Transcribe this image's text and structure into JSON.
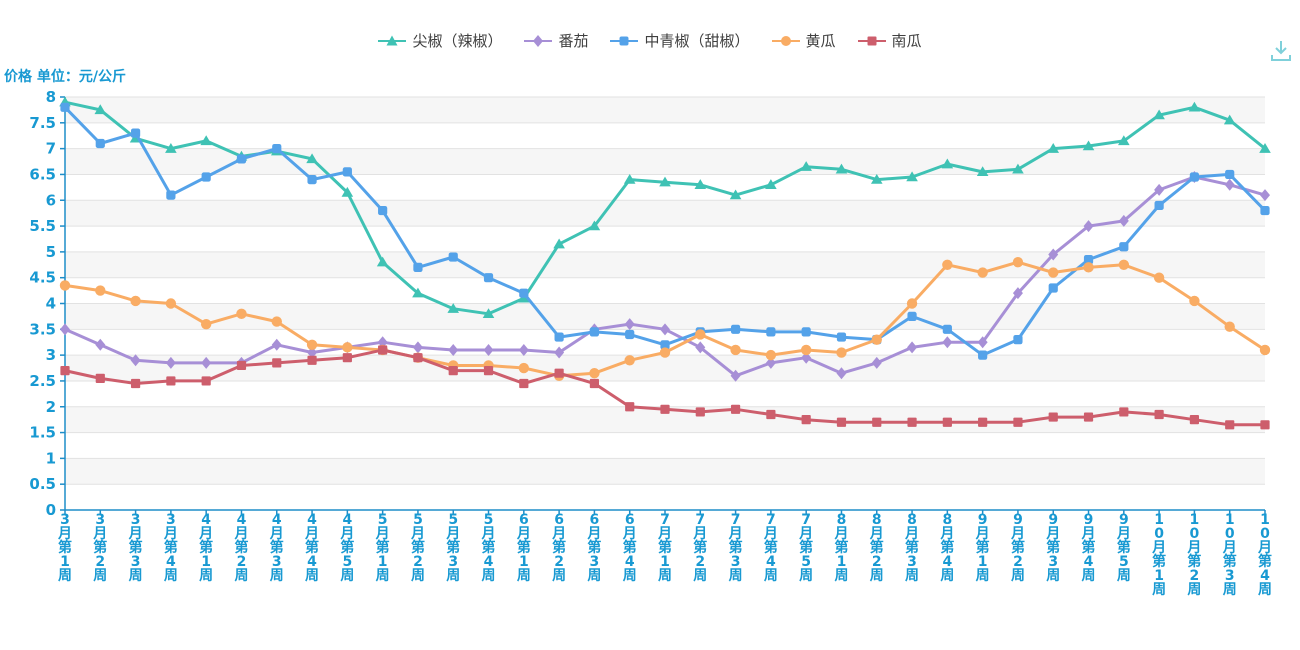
{
  "header": {
    "title": "价格 单位：元/公斤"
  },
  "toolbox": {
    "save_icon": "save-as-image",
    "icon_color": "#7fd0da"
  },
  "axis_style": {
    "axis_line_color": "#1e8dc8",
    "tick_label_color": "#1899d2",
    "band_color": "#f6f6f6",
    "grid_line_color": "#e2e2e2",
    "legend_text_color": "#404040"
  },
  "chart_data": {
    "type": "line",
    "title": "",
    "ylabel": "价格 单位：元/公斤",
    "xlabel": "",
    "ylim": [
      0,
      8
    ],
    "ytick_step": 0.5,
    "yticks": [
      "0",
      "0.5",
      "1",
      "1.5",
      "2",
      "2.5",
      "3",
      "3.5",
      "4",
      "4.5",
      "5",
      "5.5",
      "6",
      "6.5",
      "7",
      "7.5",
      "8"
    ],
    "grid": true,
    "split_area": true,
    "legend_position": "top",
    "categories": [
      "3月第1周",
      "3月第2周",
      "3月第3周",
      "3月第4周",
      "4月第1周",
      "4月第2周",
      "4月第3周",
      "4月第4周",
      "4月第5周",
      "5月第1周",
      "5月第2周",
      "5月第3周",
      "5月第4周",
      "6月第1周",
      "6月第2周",
      "6月第3周",
      "6月第4周",
      "7月第1周",
      "7月第2周",
      "7月第3周",
      "7月第4周",
      "7月第5周",
      "8月第1周",
      "8月第2周",
      "8月第3周",
      "8月第4周",
      "9月第1周",
      "9月第2周",
      "9月第3周",
      "9月第4周",
      "9月第5周",
      "10月第1周",
      "10月第2周",
      "10月第3周",
      "10月第4周"
    ],
    "series": [
      {
        "name": "尖椒（辣椒）",
        "color": "#3fc2b4",
        "symbol": "triangle",
        "values": [
          7.9,
          7.75,
          7.2,
          7.0,
          7.15,
          6.85,
          6.95,
          6.8,
          6.15,
          4.8,
          4.2,
          3.9,
          3.8,
          4.1,
          5.15,
          5.5,
          6.4,
          6.35,
          6.3,
          6.1,
          6.3,
          6.65,
          6.6,
          6.4,
          6.45,
          6.7,
          6.55,
          6.6,
          7.0,
          7.05,
          7.15,
          7.65,
          7.8,
          7.55,
          7.0
        ]
      },
      {
        "name": "番茄",
        "color": "#a78fd6",
        "symbol": "diamond",
        "values": [
          3.5,
          3.2,
          2.9,
          2.85,
          2.85,
          2.85,
          3.2,
          3.05,
          3.15,
          3.25,
          3.15,
          3.1,
          3.1,
          3.1,
          3.05,
          3.5,
          3.6,
          3.5,
          3.15,
          2.6,
          2.85,
          2.95,
          2.65,
          2.85,
          3.15,
          3.25,
          3.25,
          4.2,
          4.95,
          5.5,
          5.6,
          6.2,
          6.45,
          6.3,
          6.1
        ]
      },
      {
        "name": "中青椒（甜椒）",
        "color": "#54a2e9",
        "symbol": "roundsquare",
        "values": [
          7.8,
          7.1,
          7.3,
          6.1,
          6.45,
          6.8,
          7.0,
          6.4,
          6.55,
          5.8,
          4.7,
          4.9,
          4.5,
          4.2,
          3.35,
          3.45,
          3.4,
          3.2,
          3.45,
          3.5,
          3.45,
          3.45,
          3.35,
          3.3,
          3.75,
          3.5,
          3.0,
          3.3,
          4.3,
          4.85,
          5.1,
          5.9,
          6.45,
          6.5,
          5.8
        ]
      },
      {
        "name": "黄瓜",
        "color": "#f9ac64",
        "symbol": "circle",
        "values": [
          4.35,
          4.25,
          4.05,
          4.0,
          3.6,
          3.8,
          3.65,
          3.2,
          3.15,
          3.1,
          2.95,
          2.8,
          2.8,
          2.75,
          2.6,
          2.65,
          2.9,
          3.05,
          3.4,
          3.1,
          3.0,
          3.1,
          3.05,
          3.3,
          4.0,
          4.75,
          4.6,
          4.8,
          4.6,
          4.7,
          4.75,
          4.5,
          4.05,
          3.55,
          3.1
        ]
      },
      {
        "name": "南瓜",
        "color": "#cd5e6c",
        "symbol": "square",
        "values": [
          2.7,
          2.55,
          2.45,
          2.5,
          2.5,
          2.8,
          2.85,
          2.9,
          2.95,
          3.1,
          2.95,
          2.7,
          2.7,
          2.45,
          2.65,
          2.45,
          2.0,
          1.95,
          1.9,
          1.95,
          1.85,
          1.75,
          1.7,
          1.7,
          1.7,
          1.7,
          1.7,
          1.7,
          1.8,
          1.8,
          1.9,
          1.85,
          1.75,
          1.65,
          1.65
        ]
      }
    ]
  }
}
